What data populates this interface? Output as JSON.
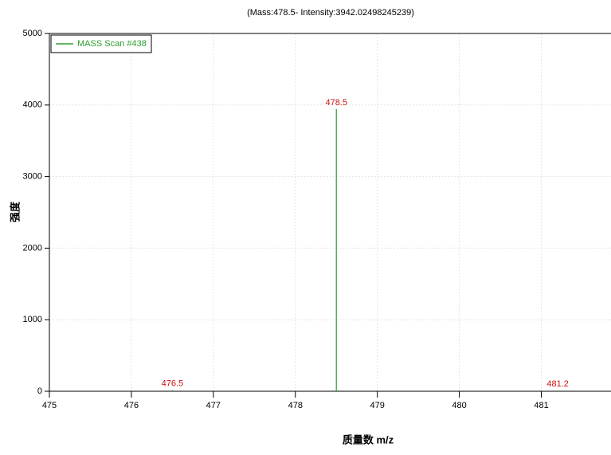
{
  "chart_data": {
    "type": "spectrum",
    "subtitle": "(Mass:478.5- Intensity:3942.02498245239)",
    "x_label": "质量数 m/z",
    "y_label": "强度",
    "series": [
      {
        "name": "MASS Scan #438",
        "color": "#2e9e2e",
        "x": [
          476.5,
          478.5,
          481.2
        ],
        "values": [
          15,
          3942.02498245239,
          10
        ]
      }
    ],
    "label_color": "#cc1111",
    "xlim": [
      475,
      481.85
    ],
    "xticks": [
      475,
      476,
      477,
      478,
      479,
      480,
      481
    ],
    "ylim": [
      0,
      5000
    ],
    "yticks": [
      0,
      1000,
      2000,
      3000,
      4000,
      5000
    ],
    "grid": true,
    "legend": "top-left"
  }
}
